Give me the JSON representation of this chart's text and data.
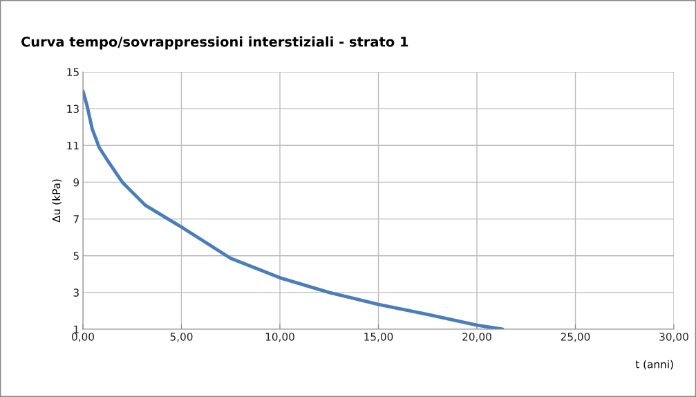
{
  "chart_data": {
    "type": "line",
    "title": "Curva tempo/sovrappressioni interstiziali - strato 1",
    "xlabel": "t (anni)",
    "ylabel": "Δu (kPa)",
    "x": [
      0,
      0.2,
      0.47,
      0.82,
      1.3,
      2.0,
      3.16,
      5.0,
      7.5,
      10.0,
      12.5,
      15.0,
      17.5,
      20.0,
      21.3
    ],
    "series": [
      {
        "color": "#4a7ebb",
        "values": [
          13.96,
          13.2,
          11.9,
          10.9,
          10.1,
          9.0,
          7.75,
          6.56,
          4.86,
          3.8,
          3.0,
          2.35,
          1.8,
          1.22,
          1.0
        ]
      }
    ],
    "xlim": [
      0,
      30
    ],
    "xticks": [
      {
        "value": 0,
        "label": "0,00"
      },
      {
        "value": 5,
        "label": "5,00"
      },
      {
        "value": 10,
        "label": "10,00"
      },
      {
        "value": 15,
        "label": "15,00"
      },
      {
        "value": 20,
        "label": "20,00"
      },
      {
        "value": 25,
        "label": "25,00"
      },
      {
        "value": 30,
        "label": "30,00"
      }
    ],
    "ylim": [
      1,
      15
    ],
    "yticks": [
      1,
      3,
      5,
      7,
      9,
      11,
      13,
      15
    ],
    "grid": true,
    "marker": "none",
    "line_style": "solid"
  }
}
